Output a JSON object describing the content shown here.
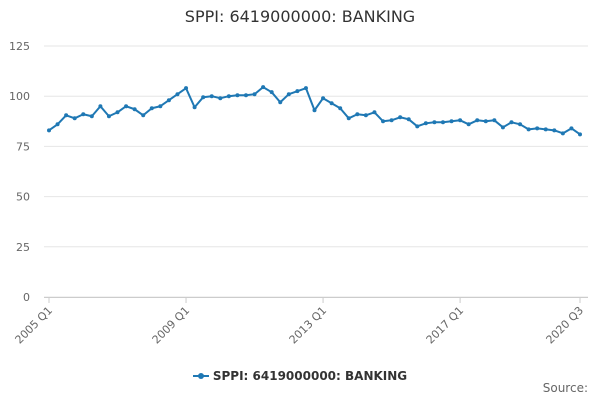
{
  "chart_data": {
    "type": "line",
    "title": "SPPI: 6419000000: BANKING",
    "x": [
      "2005 Q1",
      "2005 Q2",
      "2005 Q3",
      "2005 Q4",
      "2006 Q1",
      "2006 Q2",
      "2006 Q3",
      "2006 Q4",
      "2007 Q1",
      "2007 Q2",
      "2007 Q3",
      "2007 Q4",
      "2008 Q1",
      "2008 Q2",
      "2008 Q3",
      "2008 Q4",
      "2009 Q1",
      "2009 Q2",
      "2009 Q3",
      "2009 Q4",
      "2010 Q1",
      "2010 Q2",
      "2010 Q3",
      "2010 Q4",
      "2011 Q1",
      "2011 Q2",
      "2011 Q3",
      "2011 Q4",
      "2012 Q1",
      "2012 Q2",
      "2012 Q3",
      "2012 Q4",
      "2013 Q1",
      "2013 Q2",
      "2013 Q3",
      "2013 Q4",
      "2014 Q1",
      "2014 Q2",
      "2014 Q3",
      "2014 Q4",
      "2015 Q1",
      "2015 Q2",
      "2015 Q3",
      "2015 Q4",
      "2016 Q1",
      "2016 Q2",
      "2016 Q3",
      "2016 Q4",
      "2017 Q1",
      "2017 Q2",
      "2017 Q3",
      "2017 Q4",
      "2018 Q1",
      "2018 Q2",
      "2018 Q3",
      "2018 Q4",
      "2019 Q1",
      "2019 Q2",
      "2019 Q3",
      "2019 Q4",
      "2020 Q1",
      "2020 Q2",
      "2020 Q3"
    ],
    "x_tick_labels": [
      "2005 Q1",
      "2009 Q1",
      "2013 Q1",
      "2017 Q1",
      "2020 Q3"
    ],
    "series": [
      {
        "name": "SPPI: 6419000000: BANKING",
        "color": "#1f78b4",
        "values": [
          83,
          86,
          90.5,
          89,
          91,
          90,
          95,
          90,
          92,
          95,
          93.5,
          90.5,
          94,
          95,
          98,
          101,
          104,
          94.5,
          99.5,
          100,
          99,
          100,
          100.5,
          100.5,
          101,
          104.5,
          102,
          97,
          101,
          102.5,
          104,
          93,
          99,
          96.5,
          94,
          89,
          91,
          90.5,
          92,
          87.5,
          88,
          89.5,
          88.5,
          85,
          86.5,
          87,
          87,
          87.5,
          88,
          86,
          88,
          87.5,
          88,
          84.5,
          87,
          86,
          83.5,
          84,
          83.5,
          83,
          81.5,
          84,
          81
        ]
      }
    ],
    "ylim": [
      0,
      125
    ],
    "y_ticks": [
      0,
      25,
      50,
      75,
      100,
      125
    ],
    "xlabel": "",
    "ylabel": "",
    "grid": true,
    "legend_position": "bottom"
  },
  "footer": {
    "source_label": "Source:"
  }
}
